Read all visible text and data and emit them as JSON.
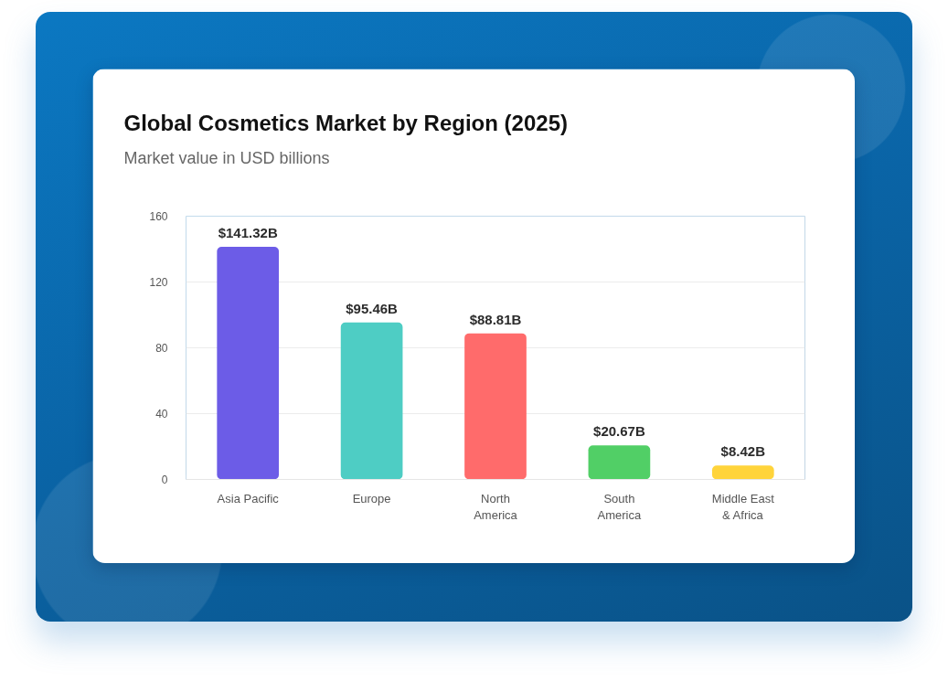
{
  "chart_data": {
    "type": "bar",
    "title": "Global Cosmetics Market by Region (2025)",
    "subtitle": "Market value in USD billions",
    "categories": [
      "Asia Pacific",
      "Europe",
      "North America",
      "South America",
      "Middle East & Africa"
    ],
    "values": [
      141.32,
      95.46,
      88.81,
      20.67,
      8.42
    ],
    "colors": [
      "#6c5ce7",
      "#4ecdc4",
      "#ff6b6b",
      "#51cf66",
      "#ffd43b"
    ],
    "value_labels": [
      "$141.32B",
      "$95.46B",
      "$88.81B",
      "$20.67B",
      "$8.42B"
    ],
    "ylim": [
      0,
      160
    ],
    "yticks": [
      0,
      40,
      80,
      120,
      160
    ],
    "grid": "y"
  }
}
